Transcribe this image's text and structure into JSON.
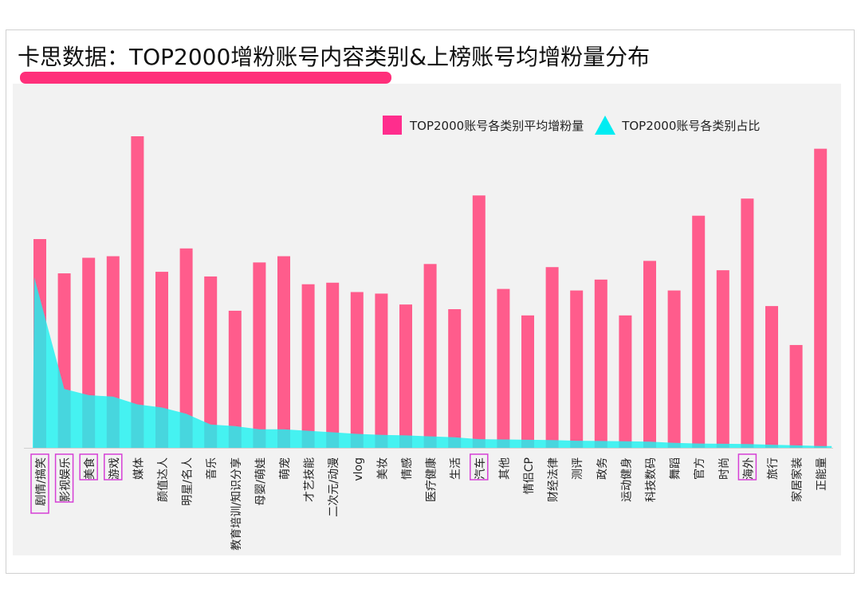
{
  "title": "卡思数据：TOP2000增粉账号内容类别&上榜账号均增粉量分布",
  "colors": {
    "accent": "#ff2f7a",
    "bar": "#ff5c8c",
    "area": "#1ff2f0",
    "highlight": "#d63fd6"
  },
  "chart_data": {
    "type": "bar",
    "categories": [
      "剧情/搞笑",
      "影视娱乐",
      "美食",
      "游戏",
      "媒体",
      "颜值达人",
      "明星/名人",
      "音乐",
      "教育培训/知识分享",
      "母婴/萌娃",
      "萌宠",
      "才艺技能",
      "二次元/动漫",
      "vlog",
      "美妆",
      "情感",
      "医疗健康",
      "生活",
      "汽车",
      "其他",
      "情侣CP",
      "财经法律",
      "测评",
      "政务",
      "运动健身",
      "科技数码",
      "舞蹈",
      "官方",
      "时尚",
      "海外",
      "旅行",
      "家居家装",
      "正能量"
    ],
    "series": [
      {
        "name": "TOP2000账号各类别平均增粉量",
        "type": "bar",
        "values": [
          67,
          56,
          61,
          61.5,
          100,
          56.5,
          64,
          55,
          44,
          59.5,
          61.5,
          52.5,
          53,
          50,
          49.5,
          46,
          59,
          44.5,
          81,
          51,
          42.5,
          58,
          50.5,
          54,
          42.5,
          60,
          50.5,
          74.5,
          57,
          80,
          45.5,
          33,
          96
        ]
      },
      {
        "name": "TOP2000账号各类别占比",
        "type": "area",
        "values": [
          55,
          19,
          17,
          16.5,
          14,
          13,
          11,
          7.5,
          7,
          6,
          6,
          5.5,
          5,
          4.5,
          4.2,
          4,
          3.7,
          3.4,
          2.8,
          2.7,
          2.6,
          2.5,
          2.3,
          2.2,
          2.1,
          2.0,
          1.6,
          1.4,
          1.3,
          1.2,
          1.0,
          0.8,
          0.6
        ]
      }
    ],
    "highlighted_categories": [
      "剧情/搞笑",
      "影视娱乐",
      "美食",
      "游戏",
      "汽车",
      "海外"
    ],
    "grid": false,
    "legend_position": "top-right"
  }
}
